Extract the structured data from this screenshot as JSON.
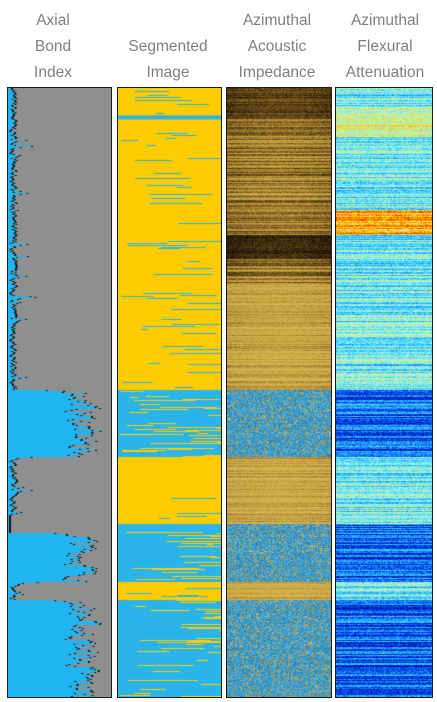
{
  "tracks": [
    {
      "id": "axial-bond-index",
      "title_lines": [
        "Axial",
        "Bond",
        "Index"
      ],
      "base_color": "#8f8f8f",
      "highlight_color": "#21b5ef",
      "trace_color": "#101010"
    },
    {
      "id": "segmented-image",
      "title_lines": [
        "",
        "Segmented",
        "Image"
      ],
      "colors": [
        "#ffcc00",
        "#2ab4e8"
      ]
    },
    {
      "id": "azimuthal-acoustic-impedance",
      "title_lines": [
        "Azimuthal",
        "Acoustic",
        "Impedance"
      ],
      "colormap": [
        "#1a1208",
        "#5a3f14",
        "#9c7a2c",
        "#c9a544",
        "#d8b552",
        "#3aa6e0"
      ]
    },
    {
      "id": "azimuthal-flexural-attenuation",
      "title_lines": [
        "Azimuthal",
        "Flexural",
        "Attenuation"
      ],
      "colormap": [
        "#0010a0",
        "#0038e0",
        "#1a8cff",
        "#40d8ff",
        "#9ef0e8",
        "#d9f27a",
        "#ffc000",
        "#ff4000"
      ]
    }
  ]
}
